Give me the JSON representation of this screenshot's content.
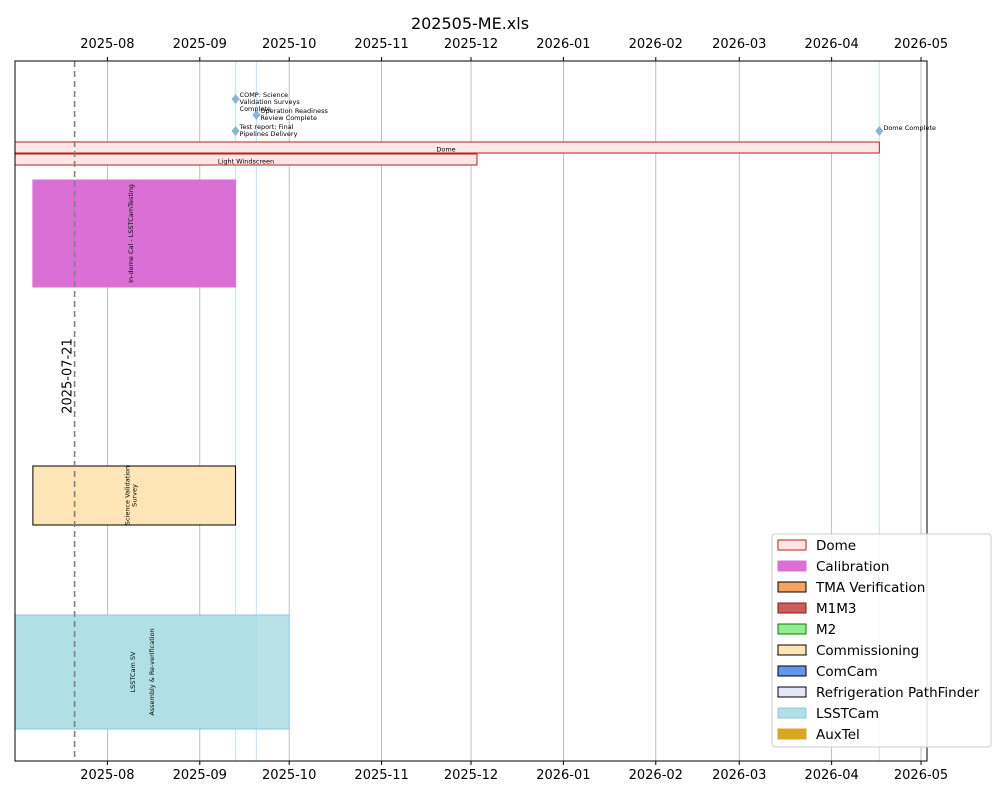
{
  "chart_data": {
    "type": "gantt",
    "title": "202505-ME.xls",
    "x_range": [
      "2025-07-01",
      "2026-05-03"
    ],
    "x_ticks": [
      "2025-08",
      "2025-09",
      "2025-10",
      "2025-11",
      "2025-12",
      "2026-01",
      "2026-02",
      "2026-03",
      "2026-04",
      "2026-05"
    ],
    "grid": "vertical",
    "reference_line": {
      "date": "2025-07-21",
      "label": "2025-07-21"
    },
    "event_lines": [
      "2025-09-13",
      "2025-09-20",
      "2026-04-17"
    ],
    "milestones": [
      {
        "date": "2025-09-13",
        "label": "COMP: Science Validation Surveys Complete",
        "lines": [
          "COMP: Science",
          "Validation Surveys",
          "Complete"
        ]
      },
      {
        "date": "2025-09-20",
        "label": "Operation Readiness Review Complete",
        "lines": [
          "Operation Readiness",
          "Review Complete"
        ]
      },
      {
        "date": "2025-09-13",
        "label": "Test report: Final Pipelines Delivery",
        "lines": [
          "Test report: Final",
          "Pipelines Delivery"
        ]
      },
      {
        "date": "2026-04-17",
        "label": "Dome Complete",
        "lines": [
          "Dome Complete"
        ]
      }
    ],
    "tasks": [
      {
        "label": "Dome",
        "group": "Dome",
        "start": "2025-07-01",
        "end": "2026-04-17",
        "lines": [
          "Dome"
        ],
        "text_orientation": "horizontal"
      },
      {
        "label": "Light Windscreen",
        "group": "Dome",
        "start": "2025-07-01",
        "end": "2025-12-03",
        "lines": [
          "Light Windscreen"
        ],
        "text_orientation": "horizontal"
      },
      {
        "label": "In-dome Cal - LSSTCamTesting",
        "group": "Calibration",
        "start": "2025-07-07",
        "end": "2025-09-13",
        "lines": [
          "In-dome Cal - LSSTCamTesting"
        ],
        "text_orientation": "vertical"
      },
      {
        "label": "Science Validation Survey",
        "group": "Commissioning",
        "start": "2025-07-07",
        "end": "2025-09-13",
        "lines": [
          "Science Validation",
          "Survey"
        ],
        "text_orientation": "vertical"
      },
      {
        "label": "LSSTCam SV",
        "group": "LSSTCam",
        "start": "2025-07-01",
        "end": "2025-09-20",
        "lines": [
          "LSSTCam SV"
        ],
        "text_orientation": "vertical"
      },
      {
        "label": "Assembly & Re-verification",
        "group": "LSSTCam",
        "start": "2025-07-01",
        "end": "2025-10-01",
        "lines": [
          "Assembly & Re-verification"
        ],
        "text_orientation": "vertical"
      }
    ],
    "legend": {
      "placement": "lower-right",
      "entries": [
        {
          "name": "Dome",
          "fill": "#fde6e6",
          "edge": "#b22222"
        },
        {
          "name": "Calibration",
          "fill": "#da70d6",
          "edge": "#da70d6"
        },
        {
          "name": "TMA Verification",
          "fill": "#f4a460",
          "edge": "#000000"
        },
        {
          "name": "M1M3",
          "fill": "#cd5c5c",
          "edge": "#8b1a1a"
        },
        {
          "name": "M2",
          "fill": "#90ee90",
          "edge": "#008000"
        },
        {
          "name": "Commissioning",
          "fill": "#ffe4b5",
          "edge": "#000000"
        },
        {
          "name": "ComCam",
          "fill": "#6495ed",
          "edge": "#000000"
        },
        {
          "name": "Refrigeration PathFinder",
          "fill": "#e6e6fa",
          "edge": "#000000"
        },
        {
          "name": "LSSTCam",
          "fill": "#b0dfe6",
          "edge": "#8ec8dc"
        },
        {
          "name": "AuxTel",
          "fill": "#daa520",
          "edge": "#daa520"
        }
      ]
    }
  }
}
